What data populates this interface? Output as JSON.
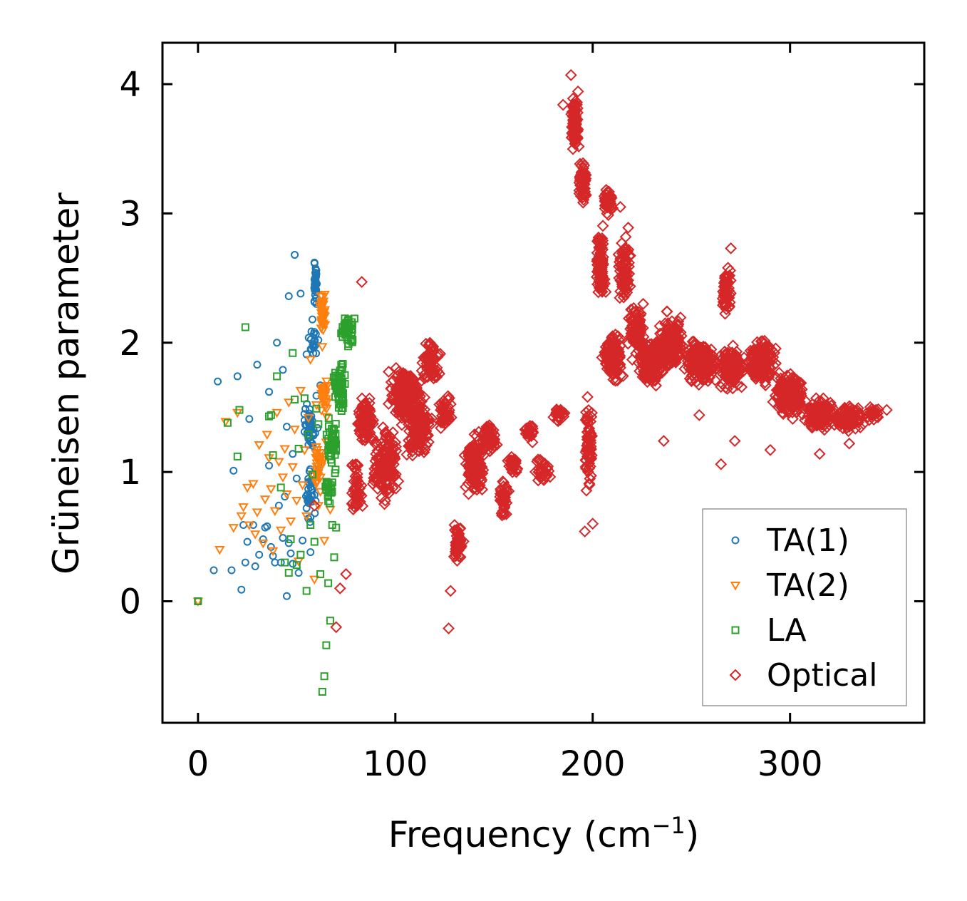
{
  "chart_data": {
    "type": "scatter",
    "title": "",
    "xlabel": "Frequency (cm",
    "xlabel_sup": "−1",
    "xlabel_close": ")",
    "ylabel": "Grüneisen parameter",
    "xlim": [
      -18,
      368
    ],
    "ylim": [
      -0.94,
      4.32
    ],
    "xticks": [
      0,
      100,
      200,
      300
    ],
    "yticks": [
      0,
      1,
      2,
      3,
      4
    ],
    "xtick_labels": [
      "0",
      "100",
      "200",
      "300"
    ],
    "ytick_labels": [
      "0",
      "1",
      "2",
      "3",
      "4"
    ],
    "grid": false,
    "legend_position": "bottom-right",
    "series": [
      {
        "name": "TA(1)",
        "marker": "circle",
        "color": "#1f77b4",
        "points": [
          [
            0,
            0
          ],
          [
            8,
            0.24
          ],
          [
            10,
            1.7
          ],
          [
            17,
            0.24
          ],
          [
            18,
            1.01
          ],
          [
            20,
            1.74
          ],
          [
            22,
            0.09
          ],
          [
            23,
            0.59
          ],
          [
            24,
            0.3
          ],
          [
            25,
            0.46
          ],
          [
            26,
            1.41
          ],
          [
            28,
            0.59
          ],
          [
            29,
            0.27
          ],
          [
            30,
            1.83
          ],
          [
            31,
            0.36
          ],
          [
            33,
            0.48
          ],
          [
            34,
            0.57
          ],
          [
            35,
            0.58
          ],
          [
            36,
            1.05
          ],
          [
            36,
            1.62
          ],
          [
            37,
            0.42
          ],
          [
            38,
            0.35
          ],
          [
            39,
            0.3
          ],
          [
            40,
            2.0
          ],
          [
            41,
            0.74
          ],
          [
            42,
            0.3
          ],
          [
            43,
            1.79
          ],
          [
            43,
            0.49
          ],
          [
            44,
            0.81
          ],
          [
            45,
            0.04
          ],
          [
            45,
            1.35
          ],
          [
            46,
            0.45
          ],
          [
            46,
            2.36
          ],
          [
            47,
            0.37
          ],
          [
            48,
            0.29
          ],
          [
            48,
            1.14
          ],
          [
            49,
            2.68
          ],
          [
            50,
            0.95
          ],
          [
            51,
            0.22
          ],
          [
            52,
            2.38
          ],
          [
            53,
            0.47
          ],
          [
            54,
            1.4
          ],
          [
            55,
            0.72
          ],
          [
            55,
            1.91
          ],
          [
            56,
            1.33
          ],
          [
            57,
            0.93
          ],
          [
            57,
            0.38
          ],
          [
            58,
            2.18
          ],
          [
            59,
            2.62
          ],
          [
            60,
            2.3
          ],
          [
            60,
            1.59
          ],
          [
            61,
            2.02
          ],
          [
            61,
            1.05
          ],
          [
            62,
            1.67
          ]
        ],
        "clusters": [
          [
            59.5,
            2.45,
            1.5,
            0.22,
            40
          ],
          [
            58,
            2.0,
            3,
            0.12,
            18
          ],
          [
            57,
            1.35,
            4,
            0.22,
            40
          ],
          [
            57,
            0.85,
            4,
            0.25,
            35
          ]
        ]
      },
      {
        "name": "TA(2)",
        "marker": "triangle-down",
        "color": "#ff7f0e",
        "points": [
          [
            0,
            0
          ],
          [
            11,
            0.4
          ],
          [
            14,
            1.39
          ],
          [
            18,
            0.57
          ],
          [
            20,
            1.46
          ],
          [
            22,
            0.66
          ],
          [
            23,
            0.73
          ],
          [
            25,
            0.88
          ],
          [
            26,
            0.59
          ],
          [
            28,
            0.91
          ],
          [
            29,
            0.52
          ],
          [
            30,
            0.69
          ],
          [
            31,
            1.21
          ],
          [
            33,
            0.45
          ],
          [
            34,
            0.79
          ],
          [
            35,
            1.29
          ],
          [
            36,
            1.11
          ],
          [
            37,
            0.87
          ],
          [
            38,
            0.39
          ],
          [
            39,
            0.7
          ],
          [
            40,
            1.46
          ],
          [
            41,
            1.08
          ],
          [
            42,
            0.55
          ],
          [
            43,
            0.96
          ],
          [
            44,
            1.18
          ],
          [
            45,
            0.83
          ],
          [
            46,
            1.54
          ],
          [
            47,
            0.62
          ],
          [
            48,
            1.04
          ],
          [
            49,
            1.33
          ],
          [
            50,
            0.78
          ],
          [
            51,
            0.31
          ],
          [
            52,
            1.63
          ],
          [
            53,
            0.9
          ],
          [
            54,
            1.17
          ],
          [
            55,
            0.66
          ],
          [
            56,
            1.42
          ],
          [
            57,
            1.87
          ],
          [
            58,
            0.98
          ],
          [
            59,
            0.17
          ],
          [
            60,
            1.52
          ],
          [
            61,
            0.74
          ],
          [
            62,
            1.15
          ],
          [
            63,
            1.97
          ],
          [
            64,
            0.47
          ],
          [
            65,
            1.23
          ],
          [
            66,
            0.85
          ],
          [
            67,
            0.71
          ]
        ],
        "clusters": [
          [
            63,
            2.25,
            1.8,
            0.2,
            40
          ],
          [
            64,
            1.6,
            2.5,
            0.2,
            30
          ],
          [
            61,
            1.05,
            3,
            0.25,
            30
          ]
        ]
      },
      {
        "name": "LA",
        "marker": "square",
        "color": "#2ca02c",
        "points": [
          [
            0,
            0
          ],
          [
            15,
            1.38
          ],
          [
            20,
            1.12
          ],
          [
            21,
            1.48
          ],
          [
            24,
            2.12
          ],
          [
            36,
            1.43
          ],
          [
            37,
            1.44
          ],
          [
            38,
            1.13
          ],
          [
            40,
            1.74
          ],
          [
            42,
            0.88
          ],
          [
            44,
            0.3
          ],
          [
            46,
            0.22
          ],
          [
            47,
            0.48
          ],
          [
            48,
            1.92
          ],
          [
            49,
            1.56
          ],
          [
            50,
            0.28
          ],
          [
            51,
            1.18
          ],
          [
            52,
            0.36
          ],
          [
            54,
            1.57
          ],
          [
            55,
            0.08
          ],
          [
            56,
            1.29
          ],
          [
            57,
            0.59
          ],
          [
            58,
            0.98
          ],
          [
            59,
            0.46
          ],
          [
            60,
            1.49
          ],
          [
            61,
            1.37
          ],
          [
            62,
            0.21
          ],
          [
            63,
            -0.7
          ],
          [
            64,
            -0.58
          ],
          [
            65,
            -0.34
          ],
          [
            66,
            0.14
          ],
          [
            67,
            -0.15
          ],
          [
            68,
            0.59
          ],
          [
            69,
            0.34
          ],
          [
            70,
            0.57
          ]
        ],
        "clusters": [
          [
            76,
            2.1,
            4,
            0.18,
            45
          ],
          [
            72,
            1.65,
            4,
            0.25,
            60
          ],
          [
            68,
            1.2,
            3.5,
            0.25,
            50
          ],
          [
            66,
            0.85,
            3,
            0.15,
            25
          ]
        ]
      },
      {
        "name": "Optical",
        "marker": "diamond",
        "color": "#d62728",
        "points": [
          [
            59,
            0.74
          ],
          [
            70,
            -0.2
          ],
          [
            72,
            0.1
          ],
          [
            75,
            0.21
          ],
          [
            83,
            2.47
          ],
          [
            127,
            -0.21
          ],
          [
            128,
            0.08
          ],
          [
            130,
            0.59
          ],
          [
            185,
            3.84
          ],
          [
            189,
            4.07
          ],
          [
            196,
            0.54
          ],
          [
            200,
            0.6
          ],
          [
            214,
            3.05
          ],
          [
            218,
            2.89
          ],
          [
            236,
            1.24
          ],
          [
            254,
            1.44
          ],
          [
            265,
            1.06
          ],
          [
            272,
            1.24
          ],
          [
            270,
            2.73
          ],
          [
            290,
            1.17
          ],
          [
            315,
            1.14
          ],
          [
            330,
            1.22
          ],
          [
            349,
            1.48
          ]
        ],
        "clusters": [
          [
            80,
            0.85,
            4,
            0.28,
            50
          ],
          [
            85,
            1.4,
            6,
            0.25,
            80
          ],
          [
            95,
            1.05,
            8,
            0.35,
            150
          ],
          [
            105,
            1.6,
            10,
            0.28,
            180
          ],
          [
            112,
            1.35,
            8,
            0.3,
            140
          ],
          [
            118,
            1.85,
            6,
            0.2,
            80
          ],
          [
            125,
            1.5,
            4,
            0.2,
            50
          ],
          [
            132,
            0.45,
            3,
            0.2,
            50
          ],
          [
            140,
            1.05,
            6,
            0.3,
            150
          ],
          [
            148,
            1.25,
            5,
            0.15,
            60
          ],
          [
            155,
            0.8,
            3,
            0.18,
            40
          ],
          [
            160,
            1.05,
            4,
            0.12,
            25
          ],
          [
            168,
            1.3,
            3,
            0.1,
            25
          ],
          [
            175,
            1.0,
            5,
            0.15,
            35
          ],
          [
            183,
            1.45,
            4,
            0.08,
            25
          ],
          [
            191,
            3.7,
            2.5,
            0.3,
            80
          ],
          [
            195,
            3.25,
            3,
            0.25,
            60
          ],
          [
            198,
            1.2,
            2.5,
            0.45,
            70
          ],
          [
            204,
            2.6,
            3,
            0.35,
            90
          ],
          [
            208,
            3.1,
            3,
            0.15,
            40
          ],
          [
            210,
            1.9,
            6,
            0.25,
            150
          ],
          [
            216,
            2.55,
            4,
            0.3,
            80
          ],
          [
            222,
            2.1,
            5,
            0.25,
            100
          ],
          [
            230,
            1.85,
            8,
            0.22,
            200
          ],
          [
            240,
            2.0,
            8,
            0.25,
            200
          ],
          [
            255,
            1.85,
            10,
            0.2,
            220
          ],
          [
            268,
            2.4,
            3,
            0.25,
            60
          ],
          [
            270,
            1.8,
            8,
            0.2,
            150
          ],
          [
            285,
            1.85,
            10,
            0.2,
            200
          ],
          [
            300,
            1.6,
            10,
            0.22,
            180
          ],
          [
            315,
            1.45,
            10,
            0.15,
            150
          ],
          [
            330,
            1.42,
            10,
            0.12,
            100
          ],
          [
            342,
            1.45,
            5,
            0.06,
            30
          ]
        ]
      }
    ]
  }
}
